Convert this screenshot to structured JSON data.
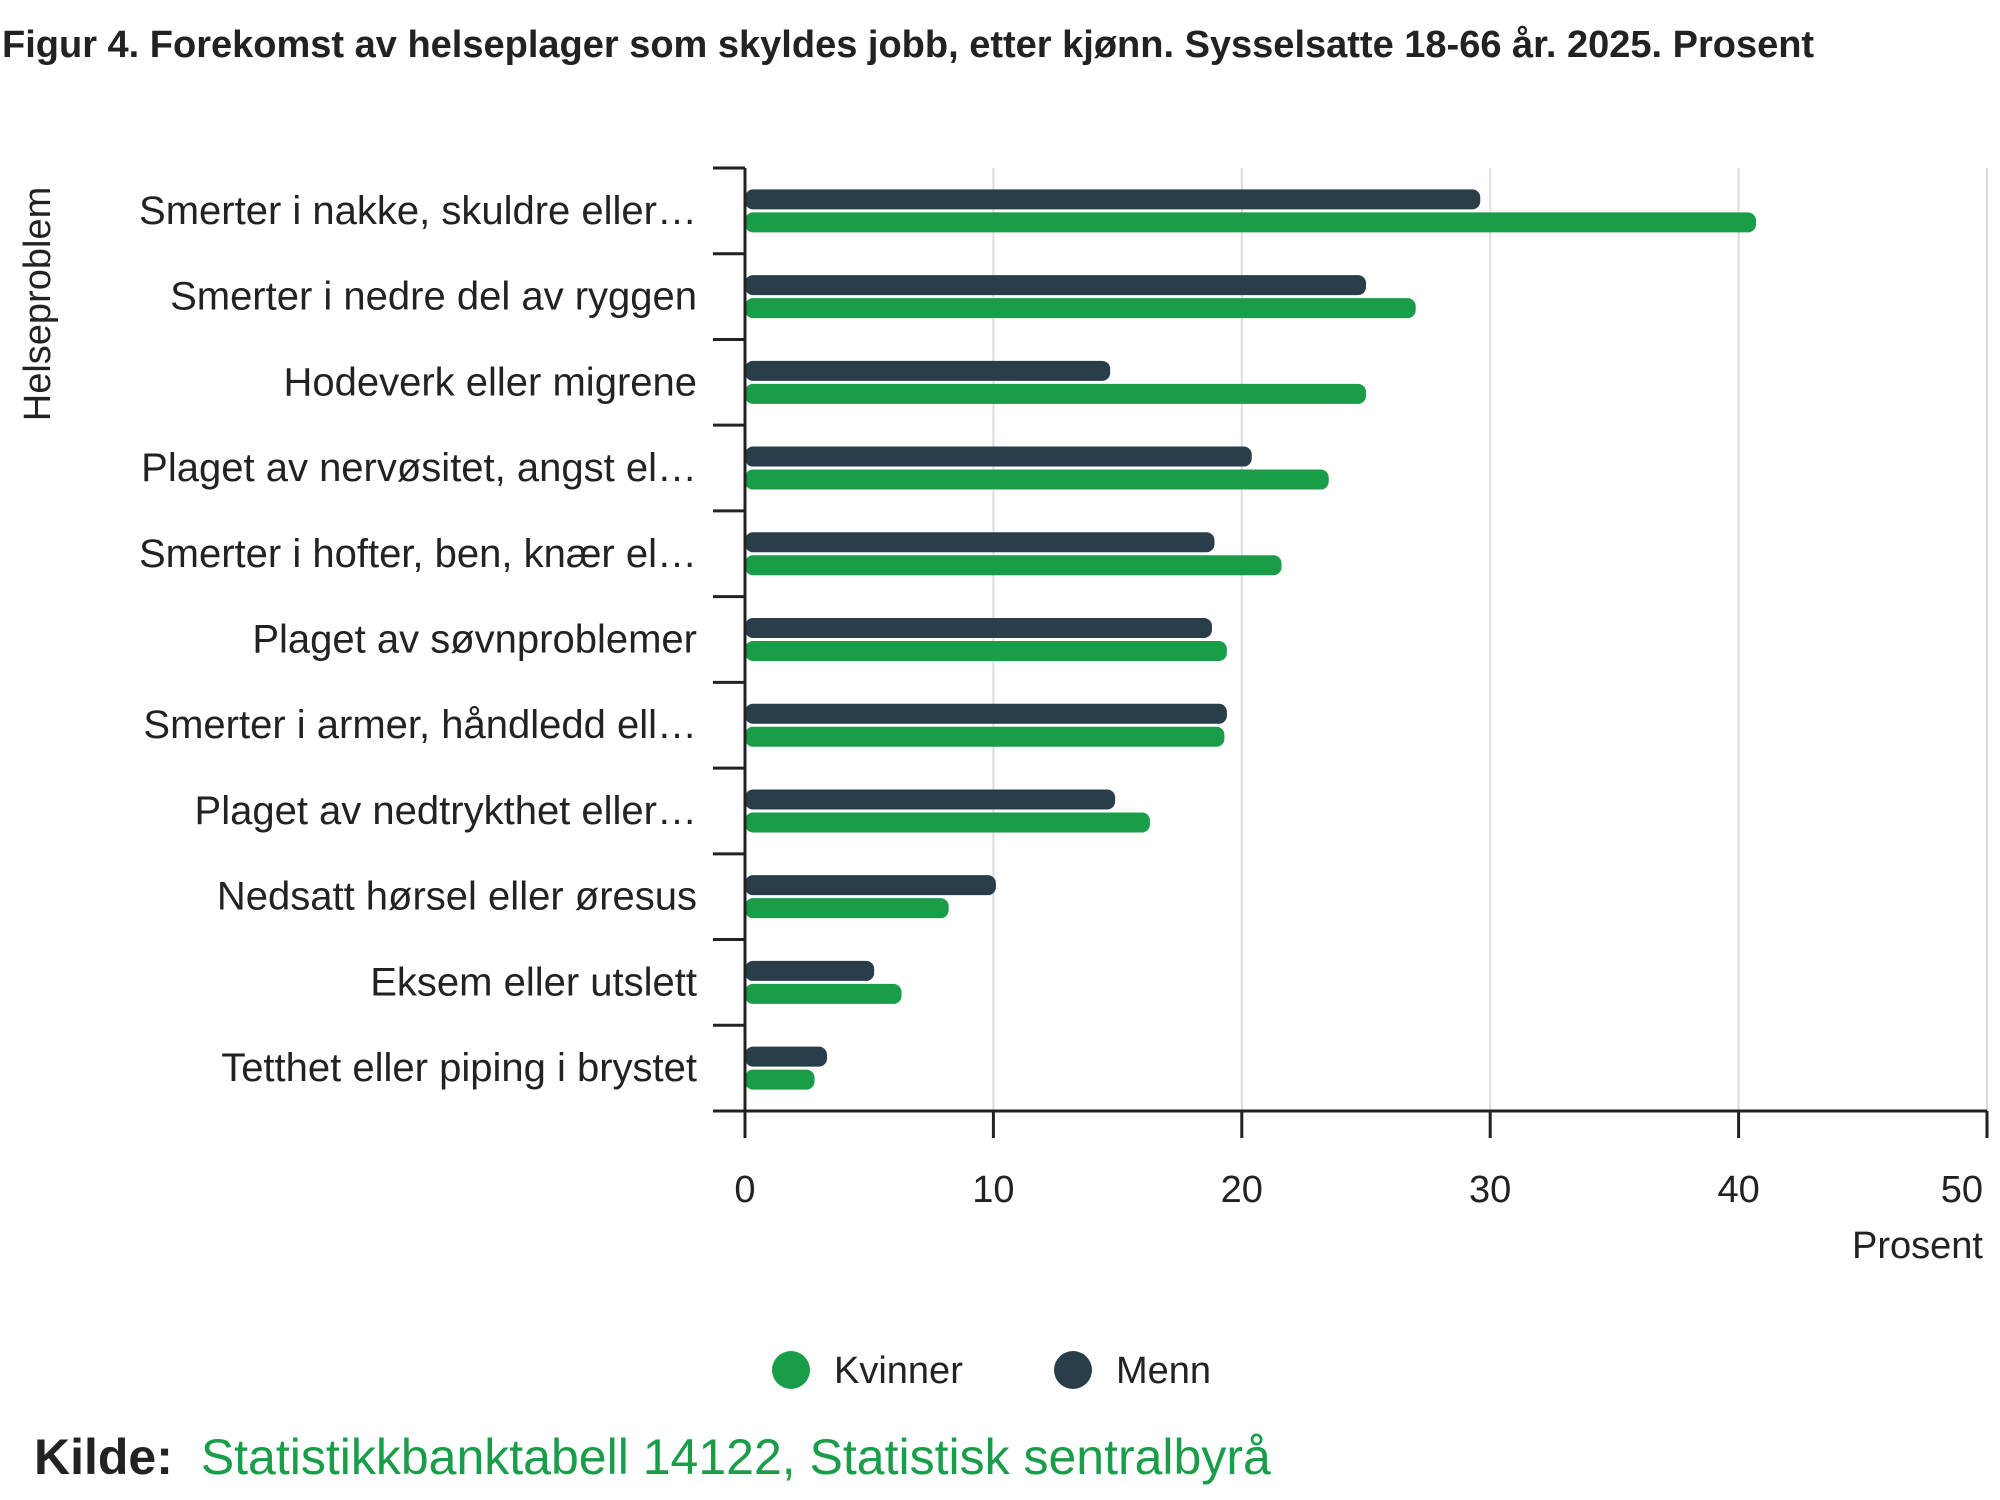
{
  "chart_data": {
    "type": "bar",
    "orientation": "horizontal",
    "title": "Figur 4. Forekomst av helseplager som skyldes jobb, etter kjønn. Sysselsatte 18-66 år. 2025. Prosent",
    "xlabel": "Prosent",
    "ylabel": "Helseproblem",
    "xlim": [
      0,
      50
    ],
    "xticks": [
      "0",
      "10",
      "20",
      "30",
      "40",
      "50"
    ],
    "grid": true,
    "legend_position": "bottom",
    "categories": [
      "Smerter i nakke, skuldre eller…",
      "Smerter i nedre del av ryggen",
      "Hodeverk eller migrene",
      "Plaget av nervøsitet, angst el…",
      "Smerter i hofter, ben, knær el…",
      "Plaget av søvnproblemer",
      "Smerter i armer, håndledd ell…",
      "Plaget av nedtrykthet eller…",
      "Nedsatt hørsel eller øresus",
      "Eksem eller utslett",
      "Tetthet eller piping i brystet"
    ],
    "series": [
      {
        "name": "Menn",
        "color": "#293e48",
        "values": [
          29.6,
          25.0,
          14.7,
          20.4,
          18.9,
          18.8,
          19.4,
          14.9,
          10.1,
          5.2,
          3.3
        ]
      },
      {
        "name": "Kvinner",
        "color": "#1a9d49",
        "values": [
          40.7,
          27.0,
          25.0,
          23.5,
          21.6,
          19.4,
          19.3,
          16.3,
          8.2,
          6.3,
          2.8
        ]
      }
    ],
    "legend_order": [
      "Kvinner",
      "Menn"
    ]
  },
  "source": {
    "label": "Kilde:",
    "text": "Statistikkbanktabell 14122, Statistisk sentralbyrå",
    "link_color": "#1a9d49"
  }
}
